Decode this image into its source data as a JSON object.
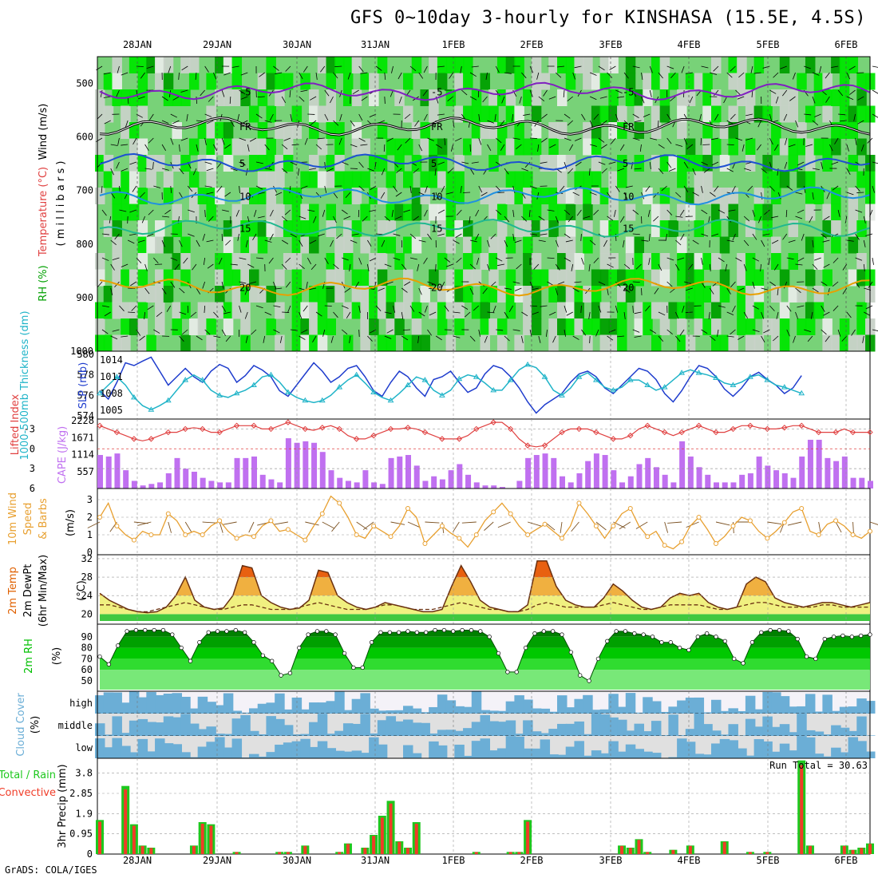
{
  "title": "GFS 0~10day 3-hourly for KINSHASA (15.5E, 4.5S)",
  "footer": "GrADS: COLA/IGES",
  "dates": [
    "28JAN",
    "29JAN",
    "30JAN",
    "31JAN",
    "1FEB",
    "2FEB",
    "3FEB",
    "4FEB",
    "5FEB",
    "6FEB"
  ],
  "colors": {
    "rh_dark": "#00a000",
    "rh_mid": "#00e600",
    "rh_light": "#78d278",
    "rh_grey": "#c8d2c8",
    "sky": "#6baed6",
    "precip_total": "#1ec81e",
    "precip_conv": "#f03c28",
    "cape": "#c070f0",
    "li": "#e04040",
    "slp": "#1e3ccd",
    "thick": "#20b4c8",
    "wind": "#e8a030",
    "temp_fill": "#f0a030",
    "rh2m": "#00c000"
  },
  "chart_data": [
    {
      "type": "heatmap",
      "name_label": "RH (%) / Temperature (°C) / Wind (m/s) (millibars)",
      "ylabel_parts": [
        "RH (%)",
        "Temperature (°C)",
        "Wind (m/s)",
        "( m i l l i b a r s )"
      ],
      "yticks": [
        500,
        600,
        700,
        800,
        900,
        1000
      ],
      "ylim": [
        1000,
        450
      ],
      "contours": [
        {
          "label": "-5",
          "color": "#8020c0",
          "level_mb": 515
        },
        {
          "label": "FR",
          "color": "#000000",
          "level_mb": 580
        },
        {
          "label": "5",
          "color": "#1e50d2",
          "level_mb": 648
        },
        {
          "label": "10",
          "color": "#2090e0",
          "level_mb": 710
        },
        {
          "label": "15",
          "color": "#20b890",
          "level_mb": 770
        },
        {
          "label": "20",
          "color": "#e8a000",
          "level_mb": 880
        }
      ]
    },
    {
      "type": "line",
      "ylabel_left": "1000-500mb Thickness (dm)",
      "ylabel_right": "SLP (mb)",
      "yticks_left": [
        574,
        576,
        578,
        580
      ],
      "yticks_right": [
        1005,
        1008,
        1011,
        1014
      ],
      "series": [
        {
          "name": "SLP",
          "axis": "right",
          "values": [
            1008.5,
            1007,
            1010,
            1013.5,
            1013,
            1013.8,
            1014.5,
            1012,
            1009.5,
            1011,
            1012.5,
            1011,
            1010,
            1012,
            1013.2,
            1012.5,
            1010,
            1011.2,
            1013,
            1012.2,
            1011,
            1008.5,
            1007.5,
            1009.5,
            1011.5,
            1013.5,
            1012,
            1010,
            1011,
            1012.5,
            1013,
            1011,
            1008.5,
            1007.5,
            1010,
            1012,
            1011,
            1009,
            1007.5,
            1010.5,
            1011,
            1012,
            1010,
            1008.2,
            1009,
            1011.5,
            1013,
            1012.5,
            1011,
            1009,
            1006.5,
            1004.5,
            1006,
            1007,
            1008,
            1010,
            1011.5,
            1012,
            1011,
            1009,
            1008,
            1009.5,
            1011,
            1012.5,
            1012,
            1010.5,
            1008,
            1006.5,
            1008.5,
            1011,
            1013,
            1012.5,
            1011,
            1008.8,
            1007.5,
            1009,
            1011,
            1011.8,
            1010.5,
            1009.5,
            1008,
            1009,
            1011.2
          ]
        },
        {
          "name": "Thickness",
          "axis": "left",
          "values": [
            576.2,
            577,
            577.8,
            577,
            575.8,
            575,
            574.6,
            575,
            575.5,
            576.5,
            577.5,
            578,
            577.5,
            576.5,
            576,
            575.8,
            576.2,
            576.5,
            577,
            577.8,
            578,
            577.3,
            576.3,
            575.8,
            575.5,
            575.3,
            575.5,
            576,
            576.8,
            577.5,
            578,
            577.2,
            576.3,
            575.8,
            575.5,
            576.2,
            577,
            577.8,
            577.5,
            576.5,
            576,
            576.5,
            577.6,
            578,
            577.8,
            577.2,
            576.5,
            576.5,
            577.5,
            578.5,
            579,
            578.7,
            577.8,
            576.5,
            576,
            576.7,
            577.8,
            578.2,
            577.5,
            576.8,
            576.5,
            576.8,
            577.5,
            577.5,
            577,
            576.5,
            576.8,
            577.5,
            578.2,
            578.5,
            578.2,
            578,
            577.7,
            577.2,
            577,
            577.3,
            577.8,
            578,
            577.5,
            577,
            576.8,
            576.5,
            576.2
          ]
        }
      ]
    },
    {
      "type": "bar",
      "ylabel_left": "Lifted Index",
      "ylabel_right": "CAPE (J/kg)",
      "yticks_left": [
        -3,
        0,
        3,
        6
      ],
      "yticks_right": [
        557,
        1114,
        1671,
        2228
      ],
      "series": [
        {
          "name": "CAPE",
          "values": [
            1100,
            1050,
            1150,
            600,
            250,
            100,
            150,
            200,
            500,
            1000,
            650,
            550,
            350,
            250,
            200,
            200,
            1000,
            1000,
            1050,
            450,
            300,
            200,
            1650,
            1500,
            1550,
            1500,
            1200,
            600,
            350,
            250,
            200,
            600,
            200,
            150,
            1000,
            1050,
            1100,
            750,
            250,
            400,
            300,
            600,
            800,
            450,
            200,
            100,
            100,
            50,
            10,
            250,
            1000,
            1100,
            1150,
            1000,
            400,
            200,
            500,
            900,
            1150,
            1100,
            600,
            200,
            400,
            800,
            1000,
            700,
            450,
            200,
            1550,
            1050,
            700,
            450,
            200,
            200,
            200,
            450,
            500,
            1050,
            750,
            600,
            500,
            350,
            1050,
            1600,
            1600,
            1000,
            900,
            1050,
            350,
            350,
            250
          ]
        },
        {
          "name": "Lifted Index",
          "values": [
            -3.5,
            -3,
            -2.5,
            -2,
            -1.5,
            -1.2,
            -1.5,
            -2,
            -2.5,
            -2.5,
            -3,
            -3.2,
            -3,
            -2.5,
            -2.5,
            -3,
            -3.5,
            -3.5,
            -3.5,
            -3,
            -3,
            -3.5,
            -4,
            -3.5,
            -3,
            -2.8,
            -3.2,
            -3.5,
            -3,
            -2,
            -1.5,
            -1.5,
            -2,
            -2.5,
            -3,
            -3,
            -3.2,
            -3,
            -2.5,
            -2,
            -1.5,
            -1.5,
            -1.5,
            -2,
            -3,
            -3.5,
            -4,
            -4,
            -3,
            -1.5,
            -0.5,
            -0.3,
            -0.5,
            -1.5,
            -2.5,
            -3,
            -3,
            -3,
            -2.5,
            -2,
            -1.5,
            -1.5,
            -2,
            -3,
            -3.5,
            -3,
            -2.5,
            -2,
            -2.5,
            -3,
            -3.5,
            -3,
            -2.5,
            -2.5,
            -3,
            -3.5,
            -3.5,
            -3.2,
            -3,
            -3,
            -3.2,
            -3.5,
            -3.5,
            -3,
            -2.5,
            -2.5,
            -2.5,
            -3,
            -2.5,
            -2.5,
            -2.5
          ]
        }
      ]
    },
    {
      "type": "line",
      "ylabel": "10m Wind Speed & Barbs (m/s)",
      "yticks": [
        0,
        1,
        2,
        3
      ],
      "series": [
        {
          "name": "10m wind",
          "values": [
            2,
            2.8,
            1.5,
            1,
            0.7,
            1.2,
            1,
            1,
            2.2,
            1.8,
            1,
            1.2,
            1,
            1.5,
            1.8,
            1.2,
            0.8,
            1,
            0.9,
            1.5,
            1.8,
            1.2,
            1.3,
            1,
            0.7,
            1.5,
            2.2,
            3.2,
            2.8,
            2,
            1,
            0.8,
            1.5,
            1.2,
            0.9,
            1.5,
            2.5,
            2,
            0.5,
            1,
            1.5,
            1.1,
            0.8,
            0.3,
            1,
            1.8,
            2.3,
            2.8,
            2.2,
            1.5,
            1,
            1.3,
            1.6,
            1.2,
            0.8,
            1.5,
            2.8,
            2.2,
            1.5,
            0.8,
            1.5,
            2.2,
            2.5,
            1.5,
            0.9,
            1.2,
            0.4,
            0.2,
            0.6,
            1.5,
            2,
            1.3,
            0.5,
            0.9,
            1.5,
            2,
            1.8,
            1.2,
            0.8,
            1.2,
            1.7,
            2.3,
            2.5,
            1.2,
            1,
            1.6,
            1.8,
            1.5,
            1,
            0.8,
            1.2
          ]
        }
      ]
    },
    {
      "type": "area",
      "ylabel": "2m Temp 2m DewPt (6hr Min/Max) (°C)",
      "yticks": [
        20,
        24,
        28,
        32
      ],
      "series": [
        {
          "name": "2m Temp",
          "values": [
            24.5,
            23,
            22,
            21,
            20.5,
            20.3,
            20.5,
            21.5,
            24,
            28,
            23,
            21.5,
            21,
            21.3,
            24,
            30.5,
            30,
            24,
            22.5,
            21.5,
            21,
            21.3,
            23,
            29.5,
            29,
            24,
            22.5,
            21.5,
            21,
            21.5,
            22.5,
            22,
            21.5,
            21,
            20.5,
            20.5,
            21,
            26,
            30.5,
            27,
            23,
            21.5,
            21,
            20.5,
            20.5,
            22,
            31.5,
            31.5,
            26,
            23,
            22,
            21.5,
            21.5,
            23.5,
            26.5,
            25,
            23,
            21.5,
            21,
            21.5,
            23.5,
            24.5,
            24,
            24.5,
            22.5,
            21.5,
            21,
            21.5,
            26.5,
            28,
            27,
            23.5,
            22.5,
            22,
            21.5,
            22,
            22.5,
            22.5,
            22,
            21.5,
            22,
            22.5
          ]
        },
        {
          "name": "2m DewPt",
          "values": [
            22,
            22,
            21.5,
            21,
            20.5,
            20.5,
            21,
            21.5,
            22,
            22.5,
            22,
            21.5,
            21,
            21,
            21.5,
            22,
            22,
            21.5,
            21,
            21,
            21,
            21.5,
            22,
            22.5,
            22,
            21.5,
            21,
            21,
            21,
            21.5,
            22,
            22,
            21.5,
            21,
            21,
            21,
            21.5,
            22,
            22.5,
            22,
            21.5,
            21,
            21,
            20.5,
            20.5,
            21,
            22,
            22.5,
            22,
            21.5,
            21.5,
            21.5,
            21.5,
            22,
            22.5,
            22,
            21.5,
            21,
            21,
            21.5,
            22,
            22,
            22,
            22,
            21.5,
            21,
            21,
            21.5,
            22,
            22.5,
            22.5,
            22,
            21.5,
            21.5,
            21.5,
            21.5,
            22,
            22,
            21.5,
            21.5,
            21.5,
            21.5
          ]
        }
      ]
    },
    {
      "type": "area",
      "ylabel": "2m RH (%)",
      "yticks": [
        50,
        60,
        70,
        80,
        90
      ],
      "series": [
        {
          "name": "2m RH",
          "values": [
            72,
            65,
            82,
            95,
            96,
            96,
            96,
            96,
            92,
            80,
            68,
            85,
            94,
            95,
            95,
            96,
            94,
            85,
            73,
            68,
            55,
            57,
            80,
            92,
            95,
            95,
            92,
            75,
            62,
            62,
            85,
            94,
            94,
            94,
            95,
            94,
            94,
            96,
            96,
            95,
            96,
            96,
            95,
            90,
            75,
            58,
            58,
            80,
            93,
            95,
            95,
            92,
            76,
            55,
            50,
            70,
            86,
            95,
            95,
            93,
            92,
            90,
            85,
            85,
            80,
            78,
            90,
            93,
            90,
            86,
            70,
            66,
            85,
            94,
            96,
            96,
            95,
            88,
            72,
            70,
            88,
            90,
            91,
            90,
            91,
            92
          ]
        }
      ]
    },
    {
      "type": "heatmap",
      "ylabel": "Cloud Cover (%)",
      "rows": [
        "high",
        "middle",
        "low"
      ]
    },
    {
      "type": "bar",
      "ylabel": "3hr Precip (mm)",
      "ylabel_left": "Total / Rain",
      "ylabel_left2": "Convective",
      "annotation": "Run Total = 30.63",
      "yticks": [
        0,
        0.95,
        1.9,
        2.85,
        3.8
      ],
      "series": [
        {
          "name": "Total",
          "values": [
            {
              "i": 0,
              "v": 1.6
            },
            {
              "i": 3,
              "v": 3.2
            },
            {
              "i": 4,
              "v": 1.4
            },
            {
              "i": 5,
              "v": 0.4
            },
            {
              "i": 6,
              "v": 0.3
            },
            {
              "i": 11,
              "v": 0.4
            },
            {
              "i": 12,
              "v": 1.5
            },
            {
              "i": 13,
              "v": 1.4
            },
            {
              "i": 16,
              "v": 0.1
            },
            {
              "i": 21,
              "v": 0.1
            },
            {
              "i": 22,
              "v": 0.1
            },
            {
              "i": 24,
              "v": 0.4
            },
            {
              "i": 28,
              "v": 0.1
            },
            {
              "i": 29,
              "v": 0.5
            },
            {
              "i": 31,
              "v": 0.3
            },
            {
              "i": 32,
              "v": 0.9
            },
            {
              "i": 33,
              "v": 1.8
            },
            {
              "i": 34,
              "v": 2.5
            },
            {
              "i": 35,
              "v": 0.6
            },
            {
              "i": 36,
              "v": 0.3
            },
            {
              "i": 37,
              "v": 1.5
            },
            {
              "i": 44,
              "v": 0.1
            },
            {
              "i": 48,
              "v": 0.1
            },
            {
              "i": 49,
              "v": 0.1
            },
            {
              "i": 50,
              "v": 1.6
            },
            {
              "i": 61,
              "v": 0.4
            },
            {
              "i": 62,
              "v": 0.3
            },
            {
              "i": 63,
              "v": 0.7
            },
            {
              "i": 64,
              "v": 0.1
            },
            {
              "i": 67,
              "v": 0.2
            },
            {
              "i": 69,
              "v": 0.4
            },
            {
              "i": 73,
              "v": 0.6
            },
            {
              "i": 76,
              "v": 0.1
            },
            {
              "i": 78,
              "v": 0.1
            },
            {
              "i": 82,
              "v": 4.4
            },
            {
              "i": 83,
              "v": 0.4
            },
            {
              "i": 87,
              "v": 0.4
            },
            {
              "i": 88,
              "v": 0.2
            },
            {
              "i": 89,
              "v": 0.3
            },
            {
              "i": 90,
              "v": 0.5
            }
          ]
        }
      ]
    }
  ]
}
